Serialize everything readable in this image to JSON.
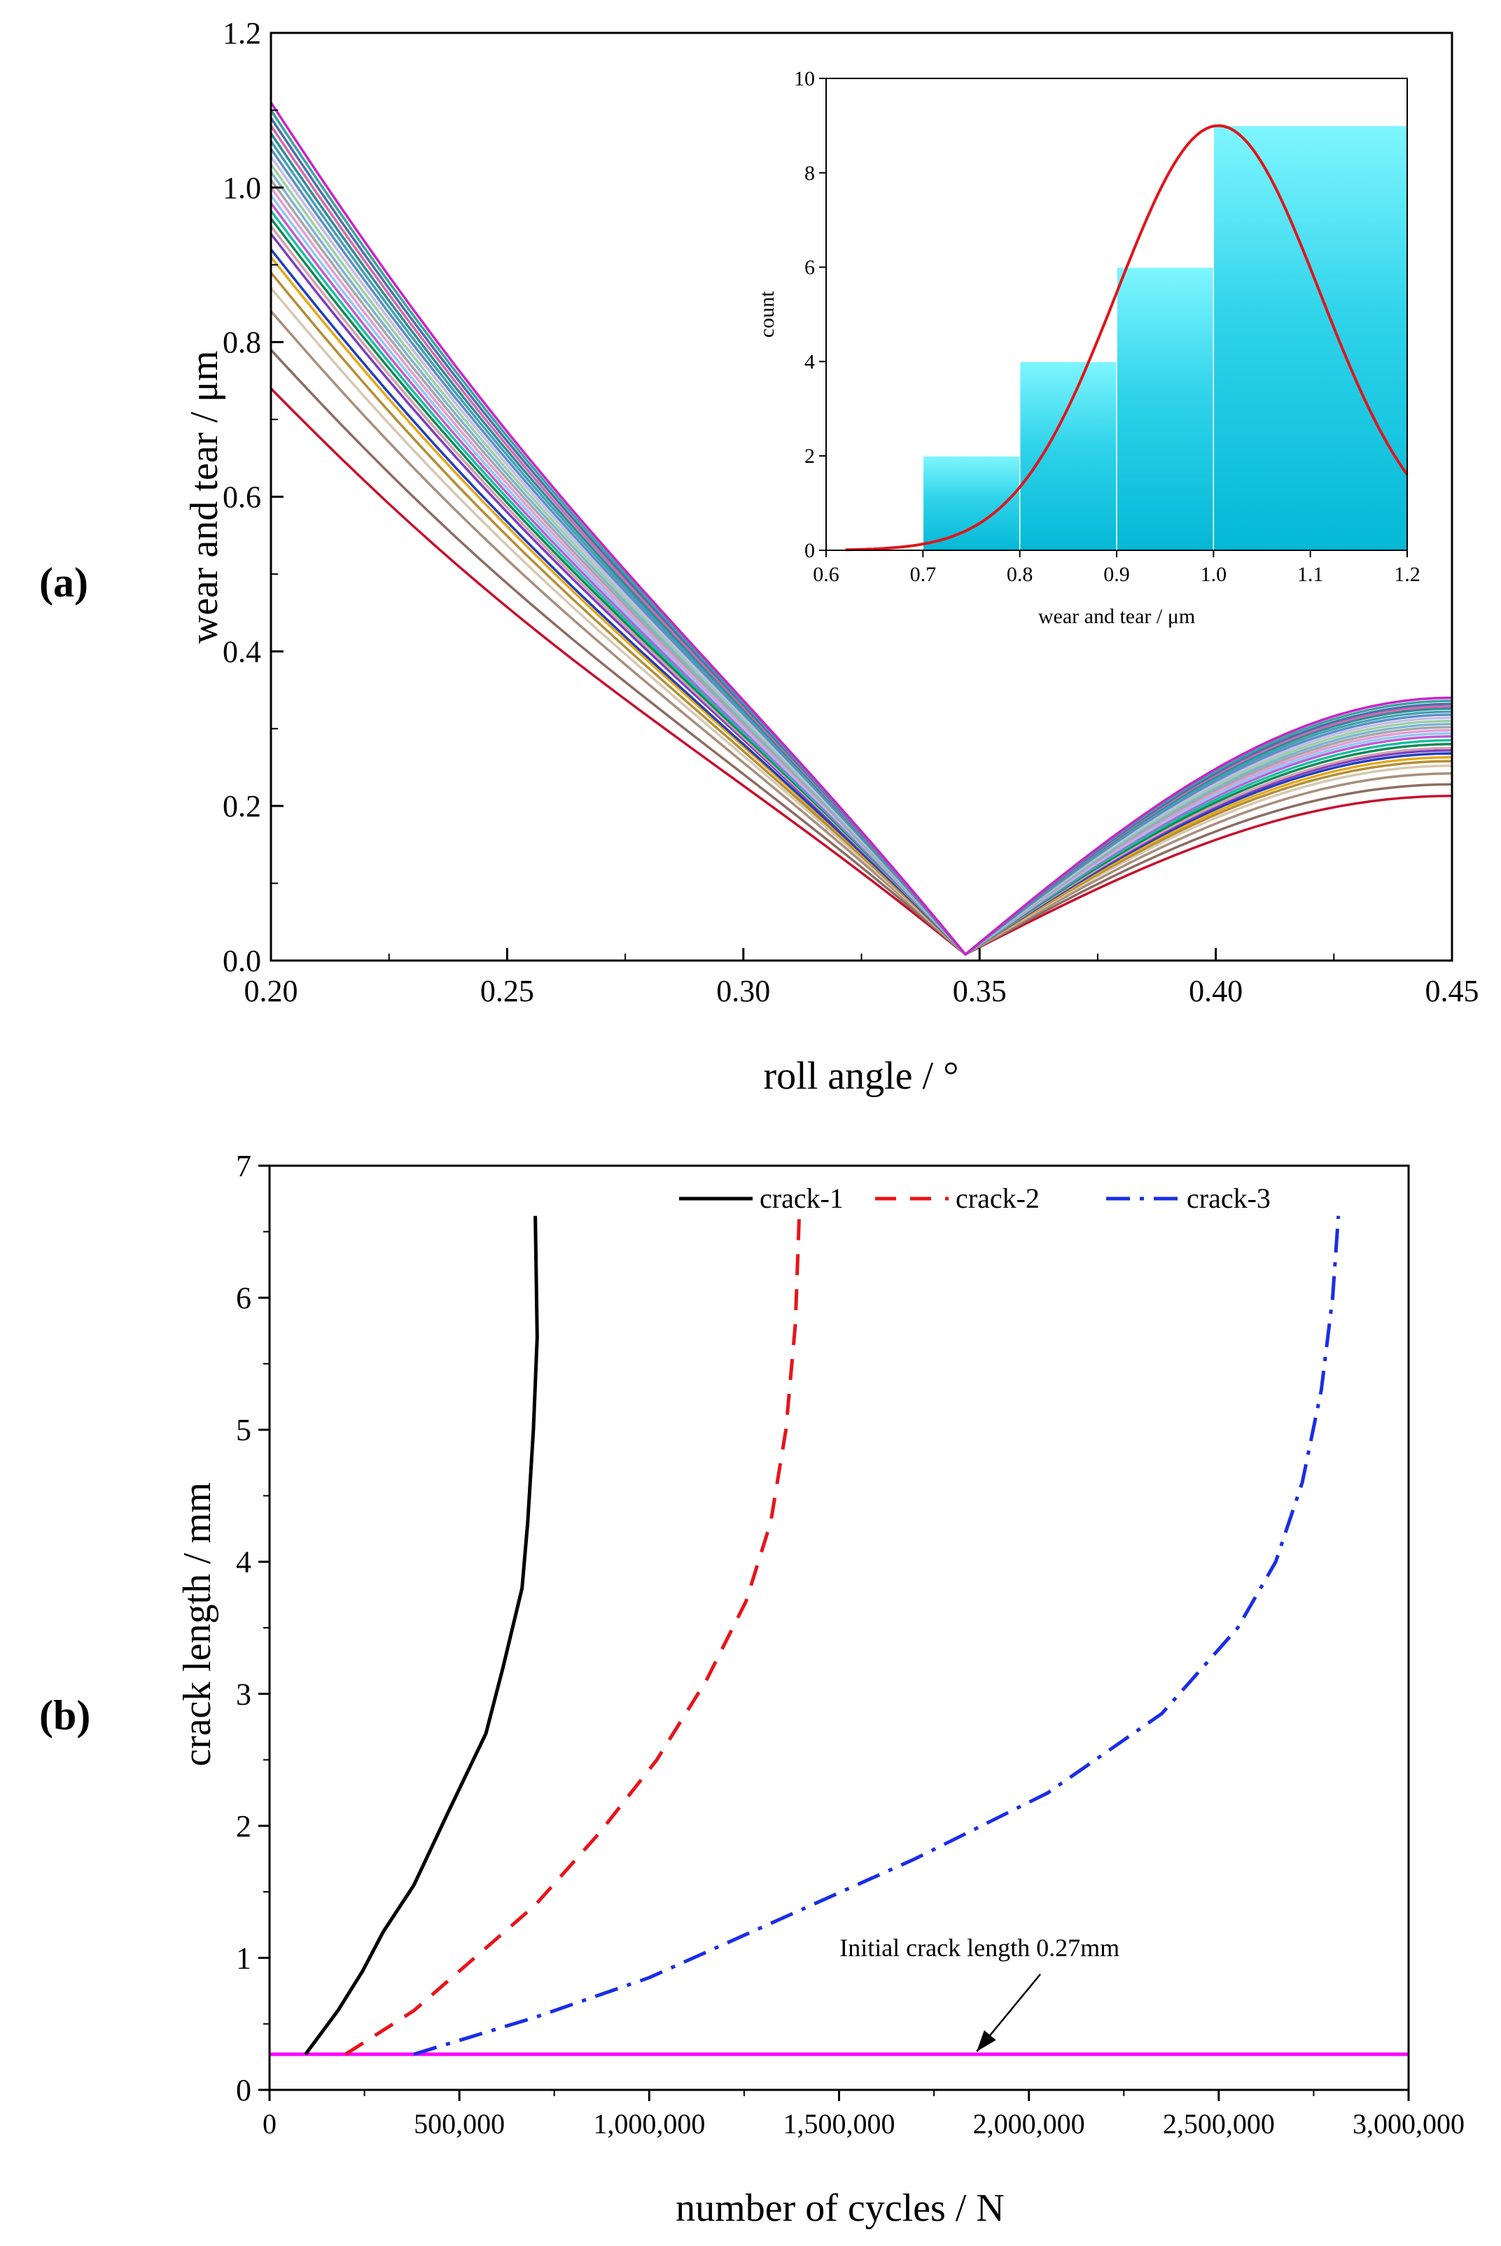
{
  "panels": {
    "a_label": "(a)",
    "b_label": "(b)"
  },
  "chart_data": [
    {
      "id": "a",
      "type": "line",
      "title": "",
      "xlabel": "roll angle / °",
      "ylabel": "wear and tear / μm",
      "xlim": [
        0.2,
        0.45
      ],
      "ylim": [
        0.0,
        1.2
      ],
      "xticks": [
        0.2,
        0.25,
        0.3,
        0.35,
        0.4,
        0.45
      ],
      "xtick_labels": [
        "0.20",
        "0.25",
        "0.30",
        "0.35",
        "0.40",
        "0.45"
      ],
      "yticks": [
        0.0,
        0.2,
        0.4,
        0.6,
        0.8,
        1.0,
        1.2
      ],
      "ytick_labels": [
        "0.0",
        "0.2",
        "0.4",
        "0.6",
        "0.8",
        "1.0",
        "1.2"
      ],
      "grid": false,
      "minimum_x": 0.347,
      "minimum_y": 0.008,
      "series": [
        {
          "color": "#c8102e",
          "start": 0.74,
          "end": 0.213
        },
        {
          "color": "#8c6d62",
          "start": 0.79,
          "end": 0.228
        },
        {
          "color": "#a88f7d",
          "start": 0.84,
          "end": 0.242
        },
        {
          "color": "#d6c8b4",
          "start": 0.87,
          "end": 0.252
        },
        {
          "color": "#b38f36",
          "start": 0.89,
          "end": 0.258
        },
        {
          "color": "#e6a817",
          "start": 0.91,
          "end": 0.263
        },
        {
          "color": "#1f3fbf",
          "start": 0.92,
          "end": 0.268
        },
        {
          "color": "#7a3fc2",
          "start": 0.94,
          "end": 0.272
        },
        {
          "color": "#d4a0b0",
          "start": 0.95,
          "end": 0.275
        },
        {
          "color": "#0e8a57",
          "start": 0.96,
          "end": 0.28
        },
        {
          "color": "#17c0a0",
          "start": 0.97,
          "end": 0.285
        },
        {
          "color": "#c05bd9",
          "start": 0.98,
          "end": 0.29
        },
        {
          "color": "#8fc9f0",
          "start": 0.99,
          "end": 0.294
        },
        {
          "color": "#e49bd6",
          "start": 1.0,
          "end": 0.298
        },
        {
          "color": "#a6a6a6",
          "start": 1.01,
          "end": 0.302
        },
        {
          "color": "#7fb3d5",
          "start": 1.02,
          "end": 0.306
        },
        {
          "color": "#9ad0a0",
          "start": 1.03,
          "end": 0.31
        },
        {
          "color": "#c7b9e8",
          "start": 1.04,
          "end": 0.314
        },
        {
          "color": "#5a8fc7",
          "start": 1.05,
          "end": 0.318
        },
        {
          "color": "#45a0b0",
          "start": 1.06,
          "end": 0.322
        },
        {
          "color": "#2e8b9a",
          "start": 1.07,
          "end": 0.326
        },
        {
          "color": "#d36aa9",
          "start": 1.08,
          "end": 0.329
        },
        {
          "color": "#4b6fb0",
          "start": 1.09,
          "end": 0.332
        },
        {
          "color": "#3aa59a",
          "start": 1.1,
          "end": 0.336
        },
        {
          "color": "#cc22cc",
          "start": 1.11,
          "end": 0.34
        }
      ],
      "inset": {
        "type": "bar",
        "xlabel": "wear and tear / μm",
        "ylabel": "count",
        "xlim": [
          0.6,
          1.2
        ],
        "ylim": [
          0,
          10
        ],
        "xticks": [
          0.6,
          0.7,
          0.8,
          0.9,
          1.0,
          1.1,
          1.2
        ],
        "xtick_labels": [
          "0.6",
          "0.7",
          "0.8",
          "0.9",
          "1.0",
          "1.1",
          "1.2"
        ],
        "yticks": [
          0,
          2,
          4,
          6,
          8,
          10
        ],
        "ytick_labels": [
          "0",
          "2",
          "4",
          "6",
          "8",
          "10"
        ],
        "bins": [
          {
            "from": 0.7,
            "to": 0.8,
            "count": 2
          },
          {
            "from": 0.8,
            "to": 0.9,
            "count": 4
          },
          {
            "from": 0.9,
            "to": 1.0,
            "count": 6
          },
          {
            "from": 1.0,
            "to": 1.2,
            "count": 9
          }
        ],
        "bar_color": "#1ec8e6",
        "fit_curve": {
          "color": "#e0151b",
          "mean": 1.005,
          "sd": 0.105,
          "peak": 9.0
        }
      }
    },
    {
      "id": "b",
      "type": "line",
      "title": "",
      "xlabel": "number of cycles / N",
      "ylabel": "crack length / mm",
      "xlim": [
        0,
        3000000
      ],
      "ylim": [
        0,
        7
      ],
      "xticks": [
        0,
        500000,
        1000000,
        1500000,
        2000000,
        2500000,
        3000000
      ],
      "xtick_labels": [
        "0",
        "500,000",
        "1,000,000",
        "1,500,000",
        "2,000,000",
        "2,500,000",
        "3,000,000"
      ],
      "yticks": [
        0,
        1,
        2,
        3,
        4,
        5,
        6,
        7
      ],
      "ytick_labels": [
        "0",
        "1",
        "2",
        "3",
        "4",
        "5",
        "6",
        "7"
      ],
      "grid": false,
      "legend_position": "top-right",
      "series": [
        {
          "name": "crack-1",
          "color": "#000000",
          "style": "solid",
          "x": [
            95000,
            180000,
            245000,
            300000,
            380000,
            470000,
            570000,
            615000,
            665000,
            680000,
            695000,
            705000,
            700000
          ],
          "y": [
            0.27,
            0.6,
            0.9,
            1.2,
            1.55,
            2.1,
            2.7,
            3.2,
            3.8,
            4.3,
            5.0,
            5.7,
            6.62
          ]
        },
        {
          "name": "crack-2",
          "color": "#e8141b",
          "style": "dash",
          "x": [
            200000,
            380000,
            540000,
            700000,
            870000,
            1020000,
            1150000,
            1255000,
            1320000,
            1360000,
            1385000,
            1395000
          ],
          "y": [
            0.27,
            0.6,
            1.0,
            1.4,
            1.95,
            2.5,
            3.1,
            3.7,
            4.3,
            5.0,
            5.8,
            6.62
          ]
        },
        {
          "name": "crack-3",
          "color": "#1a2ee6",
          "style": "dashdot",
          "x": [
            380000,
            700000,
            1000000,
            1350000,
            1700000,
            2050000,
            2350000,
            2550000,
            2650000,
            2720000,
            2770000,
            2800000,
            2815000
          ],
          "y": [
            0.27,
            0.55,
            0.85,
            1.3,
            1.75,
            2.25,
            2.85,
            3.5,
            4.0,
            4.6,
            5.3,
            6.0,
            6.62
          ]
        }
      ],
      "reference_line": {
        "y": 0.27,
        "color": "#ff00ff"
      },
      "annotation": {
        "text": "Initial crack length 0.27mm",
        "arrow_to": [
          1870000,
          0.27
        ],
        "text_at": [
          1870000,
          0.95
        ]
      }
    }
  ]
}
